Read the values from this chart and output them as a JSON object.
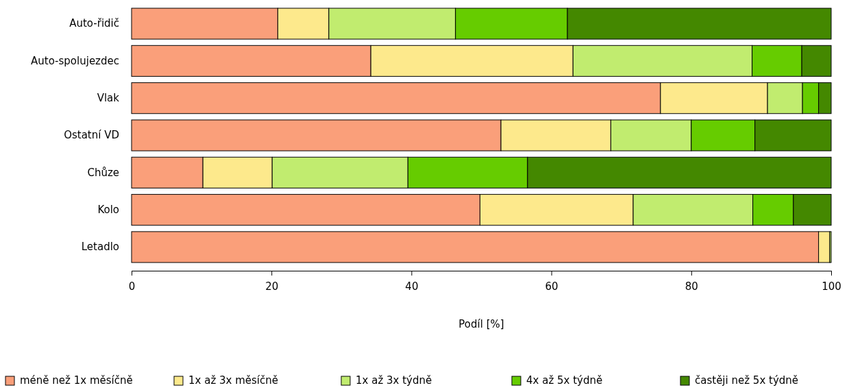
{
  "chart_data": {
    "type": "bar",
    "orientation": "horizontal",
    "stacked": true,
    "xlabel": "Podíl [%]",
    "categories": [
      "Auto-řidič",
      "Auto-spolujezdec",
      "Vlak",
      "Ostatní VD",
      "Chůze",
      "Kolo",
      "Letadlo"
    ],
    "series": [
      {
        "name": "méně než 1x měsíčně",
        "color": "#fa9f7a",
        "values": [
          20.9,
          34.2,
          75.6,
          52.8,
          10.2,
          49.8,
          98.2
        ]
      },
      {
        "name": "1x až 3x měsíčně",
        "color": "#fde98c",
        "values": [
          7.3,
          28.9,
          15.3,
          15.7,
          9.9,
          21.9,
          1.6
        ]
      },
      {
        "name": "1x až 3x týdně",
        "color": "#c1ec6f",
        "values": [
          18.1,
          25.6,
          5.0,
          11.5,
          19.4,
          17.1,
          0.2
        ]
      },
      {
        "name": "4x až 5x týdně",
        "color": "#66cc00",
        "values": [
          16.0,
          7.1,
          2.3,
          9.1,
          17.1,
          5.8,
          0
        ]
      },
      {
        "name": "častěji než 5x týdně",
        "color": "#448800",
        "values": [
          37.7,
          4.2,
          1.8,
          10.9,
          43.4,
          5.4,
          0
        ]
      }
    ],
    "xlim": [
      0,
      100
    ],
    "xticks": [
      0,
      20,
      40,
      60,
      80,
      100
    ],
    "legend": "bottom"
  }
}
